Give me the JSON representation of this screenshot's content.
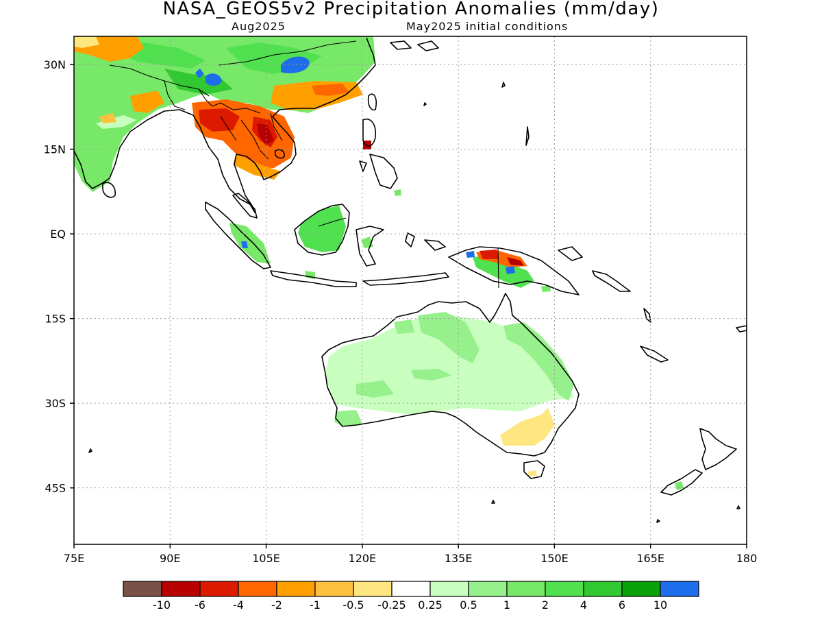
{
  "title": "NASA_GEOS5v2 Precipitation Anomalies (mm/day)",
  "subtitle_left": "Aug2025",
  "subtitle_right": "May2025 initial conditions",
  "map": {
    "lon_range": [
      75,
      180
    ],
    "lat_range": [
      -55,
      35
    ],
    "lon_ticks": [
      {
        "value": 75,
        "label": "75E"
      },
      {
        "value": 90,
        "label": "90E"
      },
      {
        "value": 105,
        "label": "105E"
      },
      {
        "value": 120,
        "label": "120E"
      },
      {
        "value": 135,
        "label": "135E"
      },
      {
        "value": 150,
        "label": "150E"
      },
      {
        "value": 165,
        "label": "165E"
      },
      {
        "value": 180,
        "label": "180"
      }
    ],
    "lat_ticks": [
      {
        "value": 30,
        "label": "30N"
      },
      {
        "value": 15,
        "label": "15N"
      },
      {
        "value": 0,
        "label": "EQ"
      },
      {
        "value": -15,
        "label": "15S"
      },
      {
        "value": -30,
        "label": "30S"
      },
      {
        "value": -45,
        "label": "45S"
      }
    ],
    "grid": true,
    "grid_style": "dotted"
  },
  "colorbar": {
    "colors": [
      "#7a5146",
      "#b80000",
      "#dc1a00",
      "#ff6600",
      "#ffa000",
      "#ffc040",
      "#ffe680",
      "#ffffff",
      "#c8ffbe",
      "#96f08c",
      "#78e868",
      "#50e050",
      "#32c832",
      "#0aa00a",
      "#1e6eeb"
    ],
    "labels": [
      "-10",
      "-6",
      "-4",
      "-2",
      "-1",
      "-0.5",
      "-0.25",
      "0.25",
      "0.5",
      "1",
      "2",
      "4",
      "6",
      "10"
    ]
  }
}
